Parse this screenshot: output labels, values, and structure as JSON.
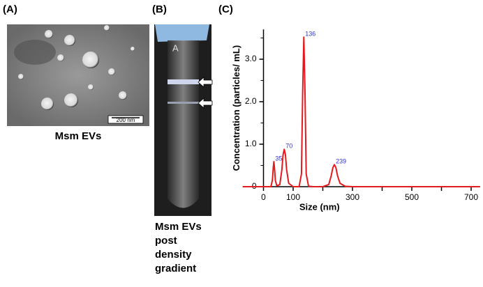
{
  "panels": [
    {
      "label": "(A)",
      "caption": "Msm EVs",
      "scale_bar": "200 nm"
    },
    {
      "label": "(B)",
      "tube_label": "A",
      "caption": [
        "Msm EVs",
        "post",
        "density",
        "gradient"
      ]
    },
    {
      "label": "(C)"
    }
  ],
  "chart_data": {
    "type": "line",
    "x_label": "Size (nm)",
    "y_label": "Concentration (particles/ mL)",
    "color": "#e41a1c",
    "x": [
      -70,
      0,
      25,
      30,
      33,
      35,
      37,
      40,
      45,
      55,
      62,
      66,
      70,
      74,
      78,
      85,
      100,
      120,
      128,
      132,
      136,
      140,
      144,
      152,
      170,
      200,
      220,
      228,
      234,
      239,
      244,
      250,
      258,
      275,
      300,
      400,
      500,
      600,
      730
    ],
    "values": [
      0,
      0,
      0,
      0.15,
      0.45,
      0.59,
      0.45,
      0.15,
      0.02,
      0.05,
      0.4,
      0.75,
      0.88,
      0.75,
      0.4,
      0.08,
      0,
      0,
      0.3,
      2.2,
      3.52,
      2.2,
      0.3,
      0.01,
      0,
      0,
      0.05,
      0.25,
      0.45,
      0.52,
      0.45,
      0.25,
      0.08,
      0.01,
      0,
      0,
      0,
      0,
      0
    ],
    "annotations": [
      {
        "text": "35",
        "x": 35,
        "y": 0.59
      },
      {
        "text": "70",
        "x": 70,
        "y": 0.88
      },
      {
        "text": "136",
        "x": 136,
        "y": 3.52
      },
      {
        "text": "239",
        "x": 239,
        "y": 0.52
      }
    ],
    "annotation_color": "#3333cc",
    "xlim": [
      -70,
      730
    ],
    "xticks": [
      0,
      100,
      300,
      500,
      700
    ],
    "xminor_ticks": [
      200,
      400,
      600
    ],
    "ylim": [
      0,
      3.7
    ],
    "yticks": [
      0,
      {
        "value": 1,
        "label": "1.0"
      },
      {
        "value": 2,
        "label": "2.0"
      },
      {
        "value": 3,
        "label": "3.0"
      }
    ],
    "yminor_ticks": [
      0.5,
      1.5,
      2.5,
      3.5
    ]
  }
}
